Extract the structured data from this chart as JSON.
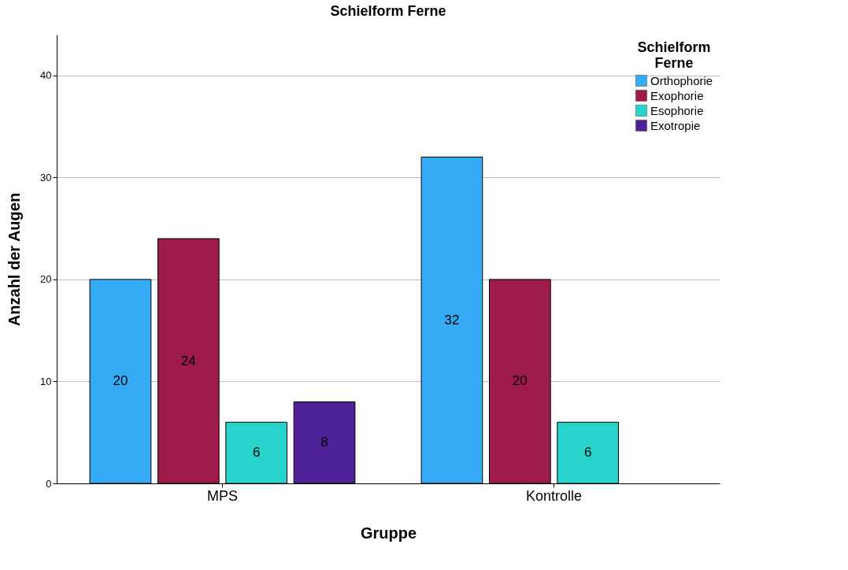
{
  "chart_data": {
    "type": "bar",
    "title": "Schielform Ferne",
    "xlabel": "Gruppe",
    "ylabel": "Anzahl der Augen",
    "legend_title": "Schielform Ferne",
    "categories": [
      "MPS",
      "Kontrolle"
    ],
    "series": [
      {
        "name": "Orthophorie",
        "color": "#35aaf5",
        "values": [
          20,
          32
        ]
      },
      {
        "name": "Exophorie",
        "color": "#9c1b4b",
        "values": [
          24,
          20
        ]
      },
      {
        "name": "Esophorie",
        "color": "#27d3cb",
        "values": [
          6,
          6
        ]
      },
      {
        "name": "Exotropie",
        "color": "#4f2196",
        "values": [
          8,
          null
        ]
      }
    ],
    "ylim": [
      0,
      44
    ],
    "yticks": [
      0,
      10,
      20,
      30,
      40
    ],
    "grid": "y",
    "legend": "top right",
    "data_labels": true
  }
}
